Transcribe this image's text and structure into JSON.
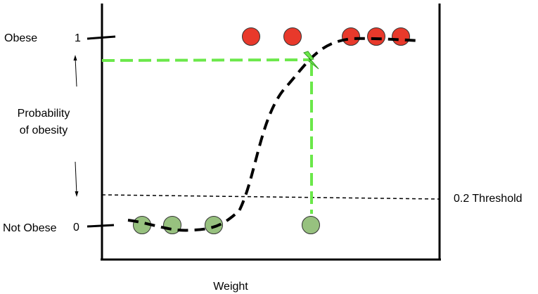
{
  "labels": {
    "obese": "Obese",
    "not_obese": "Not Obese",
    "tick_one": "1",
    "tick_zero": "0",
    "y_axis_line1": "Probability",
    "y_axis_line2": "of obesity",
    "x_axis": "Weight",
    "threshold": "0.2 Threshold"
  },
  "colors": {
    "obese_point": "#e8392b",
    "not_obese_point": "#97c17f",
    "highlight": "#6be84a",
    "axis": "#000000"
  },
  "icons": {
    "marker": "lightning-bolt-icon"
  }
}
